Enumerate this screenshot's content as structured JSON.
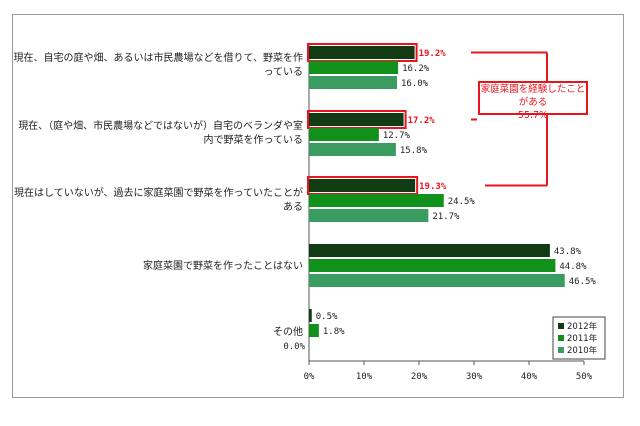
{
  "chart_data": {
    "type": "bar",
    "orientation": "horizontal",
    "categories": [
      "現在、自宅の庭や畑、あるいは市民農場などを借りて、野菜を作っている",
      "現在、（庭や畑、市民農場などではないが）自宅のベランダや室内で野菜を作っている",
      "現在はしていないが、過去に家庭菜園で野菜を作っていたことがある",
      "家庭菜園で野菜を作ったことはない",
      "その他"
    ],
    "series": [
      {
        "name": "2012年",
        "values": [
          19.2,
          17.2,
          19.3,
          43.8,
          0.5
        ],
        "color": "#123b14"
      },
      {
        "name": "2011年",
        "values": [
          16.2,
          12.7,
          24.5,
          44.8,
          1.8
        ],
        "color": "#12901c"
      },
      {
        "name": "2010年",
        "values": [
          16.0,
          15.8,
          21.7,
          46.5,
          0.0
        ],
        "color": "#3b9c62"
      }
    ],
    "value_labels": [
      [
        "19.2%",
        "16.2%",
        "16.0%"
      ],
      [
        "17.2%",
        "12.7%",
        "15.8%"
      ],
      [
        "19.3%",
        "24.5%",
        "21.7%"
      ],
      [
        "43.8%",
        "44.8%",
        "46.5%"
      ],
      [
        "0.5%",
        "1.8%",
        "0.0%"
      ]
    ],
    "x_ticks": [
      "0%",
      "10%",
      "20%",
      "30%",
      "40%",
      "50%"
    ],
    "xlim": [
      0,
      50
    ],
    "legend": [
      "2012年",
      "2011年",
      "2010年"
    ],
    "legend_position": "bottom-right",
    "highlighted": [
      "19.2%",
      "17.2%",
      "19.3%"
    ],
    "highlight_color": "#e8141e",
    "annotation": [
      "家庭菜園を経験したことがある",
      "55.7%"
    ]
  }
}
